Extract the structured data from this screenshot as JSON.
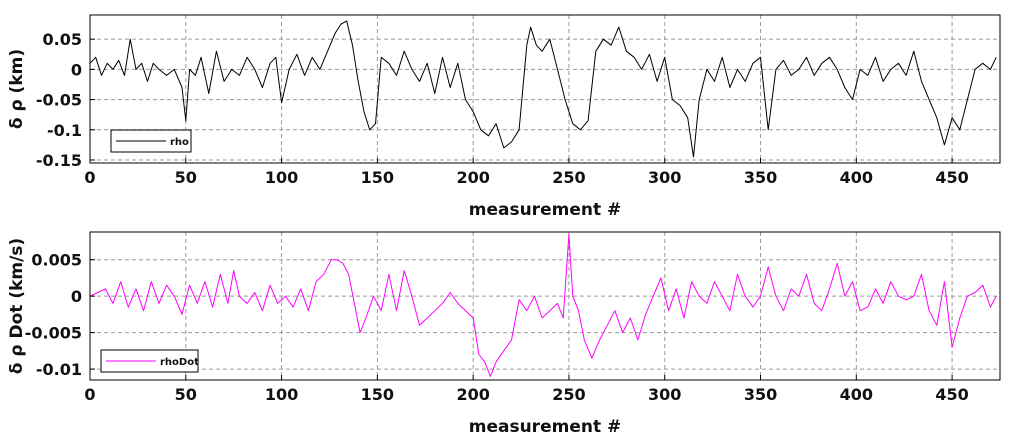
{
  "chart_data": [
    {
      "type": "line",
      "xlabel": "measurement #",
      "ylabel": "δ ρ (km)",
      "xlim": [
        0,
        475
      ],
      "ylim": [
        -0.155,
        0.09
      ],
      "xticks": [
        0,
        50,
        100,
        150,
        200,
        250,
        300,
        350,
        400,
        450
      ],
      "yticks": [
        0.05,
        0,
        -0.05,
        -0.1,
        -0.15
      ],
      "ytick_labels": [
        "0.05",
        "0",
        "-0.05",
        "-0.1",
        "-0.15"
      ],
      "grid": true,
      "legend_position": "bottom-left",
      "series": [
        {
          "name": "rho",
          "color": "#000000",
          "x": [
            0,
            3,
            6,
            9,
            12,
            15,
            18,
            21,
            24,
            27,
            30,
            33,
            36,
            40,
            44,
            48,
            50,
            52,
            55,
            58,
            62,
            66,
            70,
            74,
            78,
            82,
            86,
            90,
            94,
            97,
            100,
            104,
            108,
            112,
            116,
            120,
            124,
            128,
            131,
            134,
            137,
            140,
            143,
            146,
            149,
            152,
            156,
            160,
            164,
            168,
            172,
            176,
            180,
            184,
            188,
            192,
            196,
            200,
            204,
            208,
            212,
            216,
            220,
            224,
            228,
            230,
            233,
            236,
            240,
            244,
            248,
            252,
            256,
            260,
            264,
            268,
            272,
            276,
            280,
            284,
            288,
            292,
            296,
            300,
            304,
            308,
            312,
            315,
            318,
            322,
            326,
            330,
            334,
            338,
            342,
            346,
            350,
            354,
            358,
            362,
            366,
            370,
            374,
            378,
            382,
            386,
            390,
            394,
            398,
            402,
            406,
            410,
            414,
            418,
            422,
            426,
            430,
            434,
            438,
            442,
            446,
            450,
            454,
            458,
            462,
            466,
            470,
            473
          ],
          "values": [
            0.01,
            0.02,
            -0.01,
            0.01,
            0.0,
            0.015,
            -0.01,
            0.05,
            0.0,
            0.01,
            -0.02,
            0.01,
            0.0,
            -0.01,
            0.0,
            -0.03,
            -0.085,
            0.0,
            -0.01,
            0.02,
            -0.04,
            0.03,
            -0.02,
            0.0,
            -0.01,
            0.02,
            0.0,
            -0.03,
            0.01,
            0.02,
            -0.055,
            0.0,
            0.025,
            -0.01,
            0.02,
            0.0,
            0.03,
            0.06,
            0.075,
            0.08,
            0.04,
            -0.02,
            -0.07,
            -0.1,
            -0.09,
            0.02,
            0.01,
            -0.01,
            0.03,
            0.0,
            -0.02,
            0.01,
            -0.04,
            0.02,
            -0.03,
            0.01,
            -0.05,
            -0.07,
            -0.1,
            -0.11,
            -0.09,
            -0.13,
            -0.12,
            -0.1,
            0.04,
            0.07,
            0.04,
            0.03,
            0.05,
            0.0,
            -0.05,
            -0.09,
            -0.1,
            -0.085,
            0.03,
            0.05,
            0.04,
            0.07,
            0.03,
            0.02,
            0.0,
            0.025,
            -0.02,
            0.02,
            -0.05,
            -0.06,
            -0.08,
            -0.145,
            -0.05,
            0.0,
            -0.02,
            0.02,
            -0.03,
            0.0,
            -0.02,
            0.01,
            0.02,
            -0.1,
            0.0,
            0.015,
            -0.01,
            0.0,
            0.02,
            -0.01,
            0.01,
            0.02,
            0.0,
            -0.03,
            -0.05,
            0.0,
            -0.01,
            0.02,
            -0.02,
            0.0,
            0.01,
            -0.01,
            0.03,
            -0.02,
            -0.05,
            -0.08,
            -0.125,
            -0.08,
            -0.1,
            -0.05,
            0.0,
            0.01,
            0.0,
            0.02
          ]
        }
      ]
    },
    {
      "type": "line",
      "xlabel": "measurement #",
      "ylabel": "δ ρ Dot (km/s)",
      "xlim": [
        0,
        475
      ],
      "ylim": [
        -0.0115,
        0.0088
      ],
      "xticks": [
        0,
        50,
        100,
        150,
        200,
        250,
        300,
        350,
        400,
        450
      ],
      "yticks": [
        0.005,
        0,
        -0.005,
        -0.01
      ],
      "ytick_labels": [
        "0.005",
        "0",
        "-0.005",
        "-0.01"
      ],
      "grid": true,
      "legend_position": "bottom-left",
      "series": [
        {
          "name": "rhoDot",
          "color": "#ff00ff",
          "x": [
            0,
            4,
            8,
            12,
            16,
            20,
            24,
            28,
            32,
            36,
            40,
            44,
            48,
            52,
            56,
            60,
            64,
            68,
            72,
            75,
            78,
            82,
            86,
            90,
            94,
            98,
            102,
            106,
            110,
            114,
            118,
            122,
            126,
            129,
            132,
            135,
            138,
            141,
            144,
            148,
            152,
            156,
            160,
            164,
            168,
            172,
            176,
            180,
            184,
            188,
            192,
            196,
            200,
            203,
            206,
            209,
            212,
            216,
            220,
            224,
            228,
            232,
            236,
            240,
            244,
            247,
            250,
            252,
            255,
            258,
            262,
            266,
            270,
            274,
            278,
            282,
            286,
            290,
            294,
            298,
            302,
            306,
            310,
            314,
            318,
            322,
            326,
            330,
            334,
            338,
            342,
            346,
            350,
            354,
            358,
            362,
            366,
            370,
            374,
            378,
            382,
            386,
            390,
            394,
            398,
            402,
            406,
            410,
            414,
            418,
            422,
            426,
            430,
            434,
            438,
            442,
            446,
            450,
            454,
            458,
            462,
            466,
            470,
            473
          ],
          "values": [
            0.0,
            0.0005,
            0.001,
            -0.001,
            0.002,
            -0.0015,
            0.001,
            -0.002,
            0.002,
            -0.001,
            0.0015,
            0.0,
            -0.0025,
            0.0015,
            -0.001,
            0.002,
            -0.0015,
            0.003,
            -0.001,
            0.0035,
            0.0,
            -0.001,
            0.0005,
            -0.002,
            0.0015,
            -0.001,
            0.0,
            -0.0015,
            0.001,
            -0.002,
            0.002,
            0.003,
            0.005,
            0.005,
            0.0045,
            0.003,
            -0.001,
            -0.005,
            -0.003,
            0.0,
            -0.002,
            0.003,
            -0.002,
            0.0035,
            0.0,
            -0.004,
            -0.003,
            -0.002,
            -0.001,
            0.0005,
            -0.001,
            -0.002,
            -0.003,
            -0.008,
            -0.009,
            -0.011,
            -0.009,
            -0.0075,
            -0.006,
            -0.0005,
            -0.002,
            0.0,
            -0.003,
            -0.002,
            -0.001,
            -0.003,
            0.0085,
            0.0,
            -0.002,
            -0.006,
            -0.0085,
            -0.006,
            -0.004,
            -0.002,
            -0.005,
            -0.003,
            -0.006,
            -0.0025,
            0.0,
            0.0025,
            -0.002,
            0.001,
            -0.003,
            0.002,
            0.0,
            -0.001,
            0.002,
            0.0,
            -0.002,
            0.003,
            0.0,
            -0.0015,
            0.0,
            0.004,
            0.0,
            -0.002,
            0.001,
            0.0,
            0.003,
            -0.001,
            -0.002,
            0.001,
            0.0045,
            0.0,
            0.002,
            -0.002,
            -0.0015,
            0.001,
            -0.001,
            0.002,
            0.0,
            -0.0005,
            0.0,
            0.003,
            -0.002,
            -0.004,
            0.002,
            -0.007,
            -0.003,
            0.0,
            0.0005,
            0.0015,
            -0.0015,
            0.0
          ]
        }
      ]
    }
  ]
}
